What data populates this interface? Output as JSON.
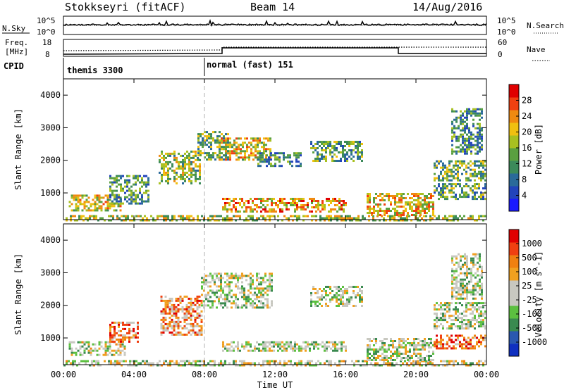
{
  "header": {
    "station": "Stokkseyri (fitACF)",
    "beam": "Beam 14",
    "date": "14/Aug/2016"
  },
  "sky_panel": {
    "left_label": "N.Sky",
    "left_ticks": [
      "10^5",
      "10^0"
    ],
    "right_label": "N.Search",
    "right_ticks": [
      "10^5",
      "10^0"
    ]
  },
  "freq_panel": {
    "left_label_1": "Freq.",
    "left_label_2": "[MHz]",
    "left_ticks": [
      "18",
      "8"
    ],
    "right_label": "Nave",
    "right_ticks": [
      "60",
      "0"
    ]
  },
  "cpid": {
    "label": "CPID",
    "segments": [
      {
        "name": "themis 3300",
        "start_hour": 0,
        "end_hour": 8
      },
      {
        "name": "normal (fast) 151",
        "start_hour": 8,
        "end_hour": 24
      }
    ]
  },
  "chart_data": [
    {
      "type": "heatmap",
      "title": "",
      "ylabel": "Slant Range [km]",
      "xlabel": "",
      "x_range_hours": [
        0,
        24
      ],
      "ylim": [
        180,
        4500
      ],
      "y_ticks": [
        "1000",
        "2000",
        "3000",
        "4000"
      ],
      "colorbar": {
        "label": "Power [dB]",
        "ticks": [
          "4",
          "8",
          "12",
          "16",
          "20",
          "24",
          "28"
        ],
        "colors": [
          "#1a1aff",
          "#2244bb",
          "#2a6a9a",
          "#3c8a5a",
          "#5aa040",
          "#a8c020",
          "#f0c010",
          "#f08a10",
          "#f04010",
          "#e00000"
        ]
      },
      "echo_regions": [
        {
          "t0": 0.0,
          "t1": 24.0,
          "r0": 180,
          "r1": 320,
          "level": 0.55
        },
        {
          "t0": 0.3,
          "t1": 3.2,
          "r0": 450,
          "r1": 950,
          "level": 0.6
        },
        {
          "t0": 2.6,
          "t1": 4.8,
          "r0": 700,
          "r1": 1550,
          "level": 0.35
        },
        {
          "t0": 5.4,
          "t1": 7.8,
          "r0": 1300,
          "r1": 2300,
          "level": 0.5
        },
        {
          "t0": 7.6,
          "t1": 9.4,
          "r0": 2000,
          "r1": 2900,
          "level": 0.45
        },
        {
          "t0": 8.8,
          "t1": 11.8,
          "r0": 2000,
          "r1": 2700,
          "level": 0.6
        },
        {
          "t0": 11.0,
          "t1": 13.5,
          "r0": 1850,
          "r1": 2250,
          "level": 0.35
        },
        {
          "t0": 14.0,
          "t1": 17.0,
          "r0": 2000,
          "r1": 2600,
          "level": 0.4
        },
        {
          "t0": 9.0,
          "t1": 16.0,
          "r0": 450,
          "r1": 850,
          "level": 0.7
        },
        {
          "t0": 17.2,
          "t1": 21.0,
          "r0": 300,
          "r1": 1000,
          "level": 0.65
        },
        {
          "t0": 21.0,
          "t1": 24.0,
          "r0": 800,
          "r1": 1300,
          "level": 0.4
        },
        {
          "t0": 21.0,
          "t1": 24.0,
          "r0": 1400,
          "r1": 2000,
          "level": 0.45
        },
        {
          "t0": 22.0,
          "t1": 23.8,
          "r0": 2200,
          "r1": 3600,
          "level": 0.35
        }
      ]
    },
    {
      "type": "heatmap",
      "title": "",
      "ylabel": "Slant Range [km]",
      "xlabel": "Time UT",
      "x_range_hours": [
        0,
        24
      ],
      "ylim": [
        180,
        4500
      ],
      "x_ticks": [
        "00:00",
        "04:00",
        "08:00",
        "12:00",
        "16:00",
        "20:00",
        "00:00"
      ],
      "y_ticks": [
        "1000",
        "2000",
        "3000",
        "4000"
      ],
      "colorbar": {
        "label": "Velocity [m s^-1]",
        "ticks": [
          "1000",
          "500",
          "100",
          "25",
          "-25",
          "-100",
          "-500",
          "-1000"
        ],
        "colors": [
          "#1030c0",
          "#2a58b0",
          "#3a8a50",
          "#5cc040",
          "#c8c8c0",
          "#c8c8c0",
          "#f0a020",
          "#f08010",
          "#f04010",
          "#e00000"
        ]
      },
      "echo_regions": [
        {
          "t0": 0.0,
          "t1": 24.0,
          "r0": 180,
          "r1": 320,
          "level": 0.5
        },
        {
          "t0": 0.3,
          "t1": 3.5,
          "r0": 450,
          "r1": 900,
          "level": 0.5
        },
        {
          "t0": 2.6,
          "t1": 4.2,
          "r0": 900,
          "r1": 1500,
          "level": 0.75
        },
        {
          "t0": 5.5,
          "t1": 7.8,
          "r0": 1100,
          "r1": 2300,
          "level": 0.7
        },
        {
          "t0": 7.8,
          "t1": 11.8,
          "r0": 1900,
          "r1": 3000,
          "level": 0.45
        },
        {
          "t0": 9.0,
          "t1": 16.0,
          "r0": 600,
          "r1": 900,
          "level": 0.45
        },
        {
          "t0": 14.0,
          "t1": 17.0,
          "r0": 2000,
          "r1": 2600,
          "level": 0.45
        },
        {
          "t0": 17.2,
          "t1": 21.0,
          "r0": 300,
          "r1": 1000,
          "level": 0.45
        },
        {
          "t0": 21.0,
          "t1": 24.0,
          "r0": 700,
          "r1": 1100,
          "level": 0.8
        },
        {
          "t0": 21.0,
          "t1": 24.0,
          "r0": 1300,
          "r1": 2100,
          "level": 0.45
        },
        {
          "t0": 22.0,
          "t1": 23.8,
          "r0": 2200,
          "r1": 3600,
          "level": 0.45
        }
      ]
    }
  ]
}
